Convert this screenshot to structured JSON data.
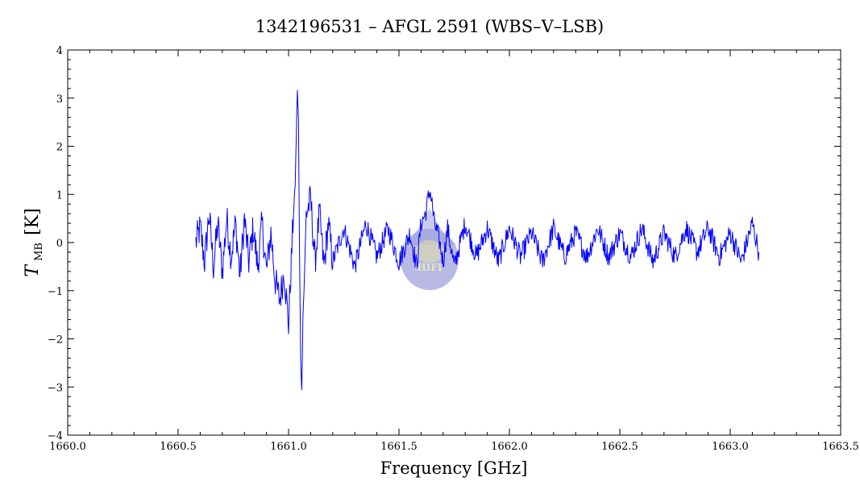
{
  "chart_data": {
    "type": "line",
    "title": "1342196531 – AFGL 2591 (WBS–V–LSB)",
    "xlabel": "Frequency [GHz]",
    "ylabel_main": "T",
    "ylabel_sub": "MB",
    "ylabel_unit": "[K]",
    "xlim": [
      1660.0,
      1663.5
    ],
    "ylim": [
      -4,
      4
    ],
    "xticks": [
      1660.0,
      1660.5,
      1661.0,
      1661.5,
      1662.0,
      1662.5,
      1663.0,
      1663.5
    ],
    "xtick_labels": [
      "1660.0",
      "1660.5",
      "1661.0",
      "1661.5",
      "1662.0",
      "1662.5",
      "1663.0",
      "1663.5"
    ],
    "yticks": [
      -4,
      -3,
      -2,
      -1,
      0,
      1,
      2,
      3,
      4
    ],
    "ytick_labels": [
      "−4",
      "−3",
      "−2",
      "−1",
      "0",
      "1",
      "2",
      "3",
      "4"
    ],
    "grid": false,
    "series": [
      {
        "color": "#0000ff",
        "x": [
          1660.58,
          1660.6,
          1660.62,
          1660.64,
          1660.66,
          1660.68,
          1660.7,
          1660.72,
          1660.74,
          1660.76,
          1660.78,
          1660.8,
          1660.82,
          1660.84,
          1660.86,
          1660.88,
          1660.9,
          1660.92,
          1660.94,
          1660.96,
          1660.98,
          1661.0,
          1661.02,
          1661.03,
          1661.04,
          1661.045,
          1661.05,
          1661.055,
          1661.06,
          1661.065,
          1661.07,
          1661.08,
          1661.1,
          1661.12,
          1661.14,
          1661.16,
          1661.18,
          1661.2,
          1661.25,
          1661.3,
          1661.35,
          1661.4,
          1661.45,
          1661.5,
          1661.55,
          1661.58,
          1661.6,
          1661.62,
          1661.64,
          1661.65,
          1661.66,
          1661.68,
          1661.7,
          1661.72,
          1661.75,
          1661.8,
          1661.85,
          1661.9,
          1661.95,
          1662.0,
          1662.05,
          1662.1,
          1662.15,
          1662.2,
          1662.25,
          1662.3,
          1662.35,
          1662.4,
          1662.45,
          1662.5,
          1662.55,
          1662.6,
          1662.65,
          1662.7,
          1662.75,
          1662.8,
          1662.85,
          1662.9,
          1662.95,
          1663.0,
          1663.05,
          1663.1,
          1663.13
        ],
        "y": [
          0.0,
          0.3,
          -0.4,
          0.6,
          -0.5,
          0.4,
          -0.6,
          0.5,
          -0.3,
          0.4,
          -0.7,
          0.5,
          -0.4,
          0.3,
          -0.5,
          0.4,
          -0.6,
          0.2,
          -0.8,
          -1.2,
          -0.6,
          -1.7,
          0.4,
          1.2,
          3.2,
          2.5,
          -0.4,
          -2.4,
          -3.1,
          -1.5,
          -1.0,
          0.6,
          0.9,
          -0.4,
          0.6,
          -0.5,
          0.4,
          -0.4,
          0.3,
          -0.5,
          0.4,
          -0.3,
          0.3,
          -0.4,
          0.2,
          -0.5,
          0.4,
          0.6,
          1.1,
          0.8,
          0.4,
          0.1,
          -0.4,
          0.3,
          -0.5,
          0.4,
          -0.3,
          0.3,
          -0.4,
          0.3,
          -0.3,
          0.2,
          -0.4,
          0.3,
          -0.3,
          0.2,
          -0.3,
          0.3,
          -0.3,
          0.2,
          -0.3,
          0.3,
          -0.4,
          0.2,
          -0.3,
          0.3,
          -0.2,
          0.3,
          -0.3,
          0.2,
          -0.4,
          0.4,
          -0.2
        ]
      }
    ],
    "watermark_text": "HIFI"
  }
}
